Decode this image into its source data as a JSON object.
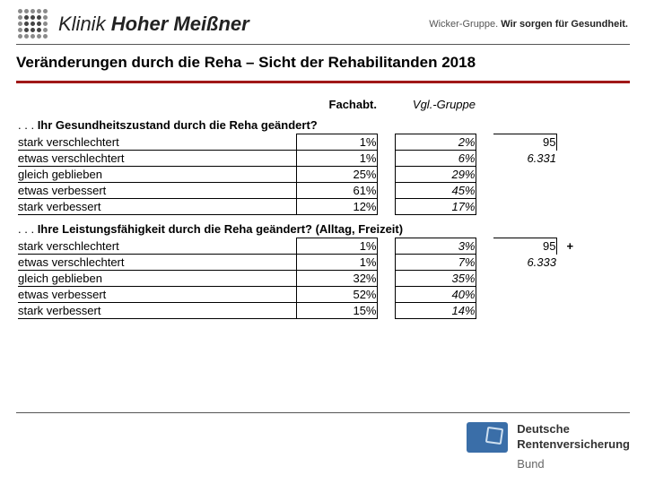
{
  "header": {
    "clinic_light": "Klinik",
    "clinic_bold": "Hoher Meißner",
    "tagline_group": "Wicker-Gruppe.",
    "tagline_slogan": "Wir sorgen für Gesundheit."
  },
  "title": "Veränderungen durch die Reha – Sicht der Rehabilitanden 2018",
  "columns": {
    "c1": "Fachabt.",
    "c2": "Vgl.-Gruppe"
  },
  "q1": {
    "prefix": ". . .",
    "text": "Ihr Gesundheitszustand durch die Reha geändert?",
    "rows": [
      {
        "label": "stark verschlechtert",
        "v1": "1%",
        "v2": "2%"
      },
      {
        "label": "etwas verschlechtert",
        "v1": "1%",
        "v2": "6%"
      },
      {
        "label": "gleich geblieben",
        "v1": "25%",
        "v2": "29%"
      },
      {
        "label": "etwas verbessert",
        "v1": "61%",
        "v2": "45%"
      },
      {
        "label": "stark verbessert",
        "v1": "12%",
        "v2": "17%"
      }
    ],
    "n1": "95",
    "n2": "6.331",
    "plus": ""
  },
  "q2": {
    "prefix": ". . .",
    "text": "Ihre Leistungsfähigkeit durch die Reha geändert? (Alltag, Freizeit)",
    "rows": [
      {
        "label": "stark verschlechtert",
        "v1": "1%",
        "v2": "3%"
      },
      {
        "label": "etwas verschlechtert",
        "v1": "1%",
        "v2": "7%"
      },
      {
        "label": "gleich geblieben",
        "v1": "32%",
        "v2": "35%"
      },
      {
        "label": "etwas verbessert",
        "v1": "52%",
        "v2": "40%"
      },
      {
        "label": "stark verbessert",
        "v1": "15%",
        "v2": "14%"
      }
    ],
    "n1": "95",
    "n2": "6.333",
    "plus": "+"
  },
  "footer": {
    "l1": "Deutsche",
    "l2": "Rentenversicherung",
    "bund": "Bund"
  }
}
